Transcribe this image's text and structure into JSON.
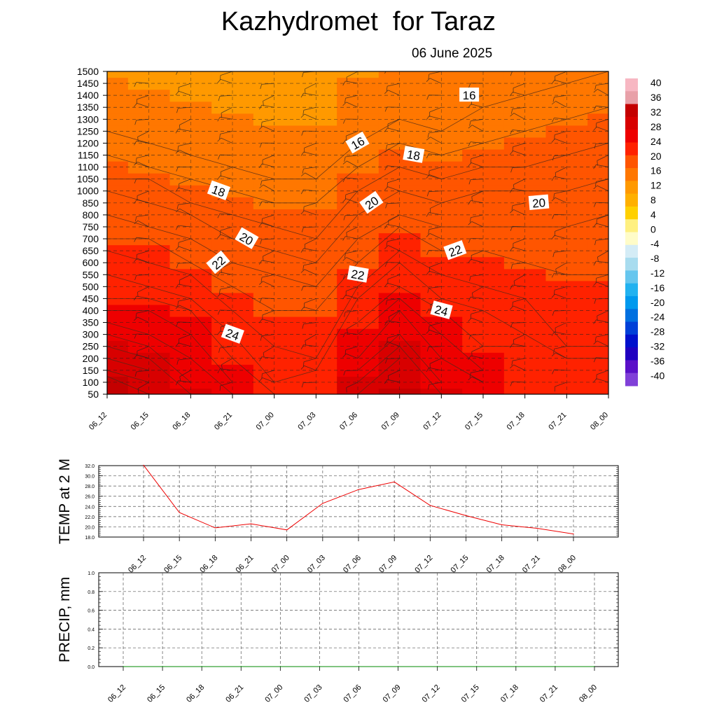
{
  "title": "Kazhydromet  for Taraz",
  "date_label": "06 June 2025",
  "chart_data": [
    {
      "type": "heatmap",
      "name": "temperature cross-section",
      "x": [
        "06_12",
        "06_15",
        "06_18",
        "06_21",
        "07_00",
        "07_03",
        "07_06",
        "07_09",
        "07_12",
        "07_15",
        "07_18",
        "07_21",
        "08_00"
      ],
      "y": [
        50,
        100,
        150,
        200,
        250,
        300,
        350,
        400,
        450,
        500,
        550,
        600,
        650,
        700,
        750,
        800,
        850,
        1000,
        1050,
        1100,
        1150,
        1200,
        1250,
        1300,
        1350,
        1400,
        1450,
        1500
      ],
      "z": [
        [
          33,
          31,
          29,
          28,
          27,
          26,
          25,
          24,
          23,
          23,
          22,
          22,
          21,
          20,
          20,
          19,
          19,
          18,
          17,
          17,
          16,
          16,
          15,
          15,
          14,
          14,
          14,
          13
        ],
        [
          30,
          29,
          28,
          27,
          26,
          25,
          25,
          24,
          23,
          22,
          22,
          21,
          21,
          20,
          19,
          19,
          18,
          18,
          17,
          16,
          16,
          15,
          15,
          15,
          14,
          14,
          13,
          13
        ],
        [
          27,
          26,
          26,
          25,
          25,
          24,
          24,
          23,
          22,
          22,
          21,
          20,
          20,
          19,
          19,
          18,
          17,
          17,
          16,
          16,
          15,
          15,
          14,
          14,
          14,
          13,
          13,
          13
        ],
        [
          25,
          24,
          24,
          23,
          23,
          22,
          22,
          21,
          21,
          20,
          20,
          19,
          19,
          18,
          18,
          17,
          17,
          16,
          16,
          15,
          15,
          14,
          14,
          14,
          13,
          13,
          13,
          12
        ],
        [
          23,
          22,
          22,
          22,
          21,
          21,
          21,
          20,
          20,
          20,
          19,
          19,
          18,
          18,
          17,
          17,
          16,
          16,
          15,
          15,
          15,
          14,
          14,
          13,
          13,
          13,
          12,
          12
        ],
        [
          22,
          22,
          22,
          21,
          21,
          21,
          21,
          20,
          20,
          19,
          19,
          18,
          18,
          17,
          17,
          17,
          16,
          16,
          15,
          15,
          14,
          14,
          14,
          13,
          13,
          13,
          12,
          12
        ],
        [
          28,
          27,
          26,
          25,
          25,
          24,
          23,
          23,
          22,
          21,
          21,
          20,
          20,
          19,
          19,
          18,
          18,
          17,
          17,
          16,
          16,
          15,
          15,
          15,
          14,
          14,
          14,
          13
        ],
        [
          31,
          30,
          29,
          28,
          27,
          26,
          26,
          25,
          24,
          23,
          23,
          22,
          21,
          21,
          20,
          19,
          19,
          18,
          18,
          17,
          17,
          16,
          16,
          15,
          15,
          15,
          14,
          14
        ],
        [
          27,
          26,
          26,
          25,
          25,
          24,
          24,
          23,
          22,
          22,
          21,
          21,
          20,
          20,
          19,
          19,
          18,
          18,
          17,
          17,
          16,
          16,
          15,
          15,
          15,
          14,
          14,
          14
        ],
        [
          25,
          25,
          24,
          24,
          23,
          23,
          23,
          22,
          22,
          21,
          21,
          21,
          20,
          20,
          19,
          19,
          19,
          18,
          18,
          17,
          17,
          16,
          16,
          16,
          15,
          15,
          15,
          14
        ],
        [
          23,
          23,
          23,
          23,
          23,
          22,
          22,
          22,
          21,
          21,
          21,
          20,
          20,
          20,
          19,
          19,
          19,
          18,
          18,
          17,
          17,
          17,
          16,
          16,
          16,
          15,
          15,
          15
        ],
        [
          22,
          22,
          22,
          22,
          21,
          21,
          21,
          21,
          21,
          21,
          20,
          20,
          20,
          20,
          19,
          19,
          19,
          18,
          18,
          18,
          17,
          17,
          17,
          16,
          16,
          16,
          15,
          15
        ],
        [
          22,
          22,
          22,
          22,
          21,
          21,
          21,
          21,
          21,
          21,
          20,
          20,
          20,
          20,
          20,
          19,
          19,
          19,
          18,
          18,
          18,
          17,
          17,
          17,
          16,
          16,
          16,
          15
        ]
      ],
      "contour_labels": [
        {
          "x": "07_14",
          "y": 1400,
          "text": "16"
        },
        {
          "x": "07_06",
          "y": 1200,
          "text": "16"
        },
        {
          "x": "07_10",
          "y": 1150,
          "text": "18"
        },
        {
          "x": "06_20",
          "y": 1000,
          "text": "18"
        },
        {
          "x": "07_07",
          "y": 850,
          "text": "20"
        },
        {
          "x": "07_19",
          "y": 850,
          "text": "20"
        },
        {
          "x": "06_22",
          "y": 700,
          "text": "20"
        },
        {
          "x": "06_20",
          "y": 600,
          "text": "22"
        },
        {
          "x": "07_13",
          "y": 650,
          "text": "22"
        },
        {
          "x": "07_06",
          "y": 550,
          "text": "22"
        },
        {
          "x": "06_21",
          "y": 300,
          "text": "24"
        },
        {
          "x": "07_12",
          "y": 400,
          "text": "24"
        }
      ],
      "colorbar": {
        "ticks": [
          "40",
          "36",
          "32",
          "28",
          "24",
          "20",
          "16",
          "12",
          "8",
          "4",
          "0",
          "-4",
          "-8",
          "-12",
          "-16",
          "-20",
          "-24",
          "-28",
          "-32",
          "-36",
          "-40"
        ],
        "colors": [
          "#f7b7c2",
          "#e8a0a8",
          "#c40000",
          "#d80000",
          "#ee0000",
          "#ff2200",
          "#ff5500",
          "#ff7700",
          "#ff9900",
          "#ffb000",
          "#ffd000",
          "#fff080",
          "#fffcc8",
          "#d4ecf6",
          "#a8dcef",
          "#66c6ee",
          "#22b2f0",
          "#0099ee",
          "#0070e0",
          "#0040d8",
          "#0010cc",
          "#2000c0",
          "#5a10c8",
          "#8040d8"
        ]
      }
    },
    {
      "type": "line",
      "ylabel": "TEMP at 2 M",
      "x": [
        "06_12",
        "06_15",
        "06_18",
        "06_21",
        "07_00",
        "07_03",
        "07_06",
        "07_09",
        "07_12",
        "07_15",
        "07_18",
        "07_21",
        "08_00"
      ],
      "values": [
        32.1,
        22.8,
        19.8,
        20.6,
        19.4,
        24.6,
        27.3,
        28.8,
        24.2,
        22.2,
        20.4,
        19.7,
        18.6
      ],
      "ylim": [
        18.0,
        32.0
      ],
      "yticks": [
        "18.0",
        "20.0",
        "22.0",
        "24.0",
        "26.0",
        "28.0",
        "30.0",
        "32.0"
      ],
      "line_color": "#ee0000",
      "grid": true
    },
    {
      "type": "line",
      "ylabel": "PRECIP, mm",
      "x": [
        "06_12",
        "06_15",
        "06_18",
        "06_21",
        "07_00",
        "07_03",
        "07_06",
        "07_09",
        "07_12",
        "07_15",
        "07_18",
        "07_21",
        "08_00"
      ],
      "values": [
        0,
        0,
        0,
        0,
        0,
        0,
        0,
        0,
        0,
        0,
        0,
        0,
        0
      ],
      "ylim": [
        0.0,
        1.0
      ],
      "yticks": [
        "0.0",
        "0.2",
        "0.4",
        "0.6",
        "0.8",
        "1.0"
      ],
      "line_color": "#008800",
      "grid": true
    }
  ]
}
